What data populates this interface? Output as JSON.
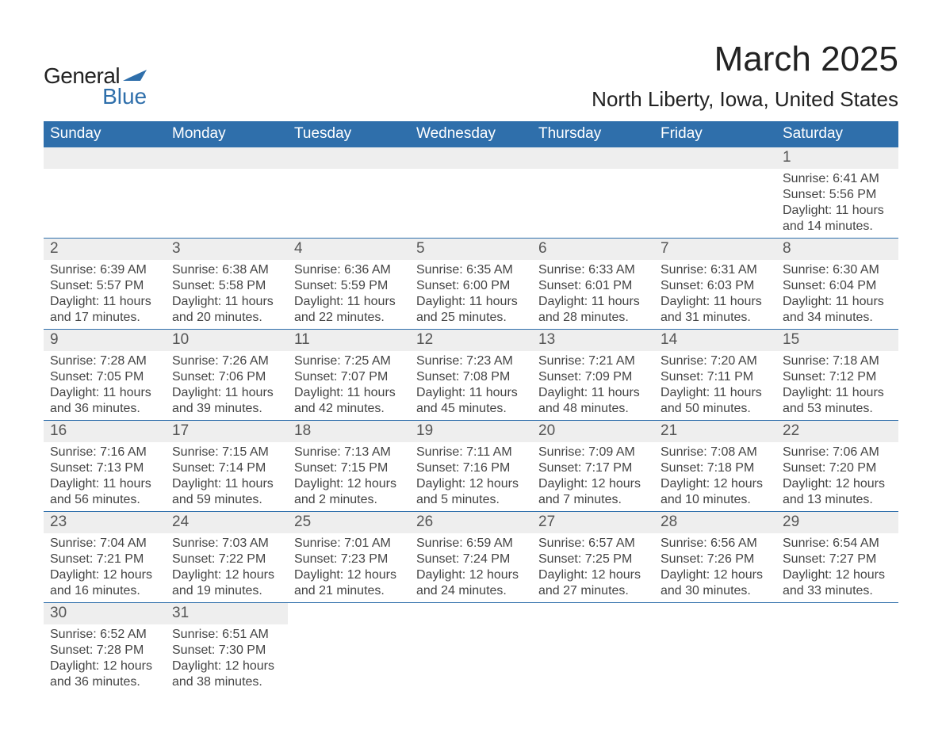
{
  "logo": {
    "text_general": "General",
    "text_blue": "Blue",
    "accent_color": "#2f6fab"
  },
  "title": "March 2025",
  "location": "North Liberty, Iowa, United States",
  "colors": {
    "header_bg": "#2f6fab",
    "header_text": "#ffffff",
    "daynum_bg": "#eeeeee",
    "daynum_text": "#555555",
    "body_text": "#444444",
    "rule": "#2f6fab",
    "page_bg": "#ffffff"
  },
  "fonts": {
    "title_size_pt": 33,
    "location_size_pt": 20,
    "header_size_pt": 14,
    "daynum_size_pt": 14,
    "detail_size_pt": 12,
    "family": "Arial"
  },
  "columns": [
    "Sunday",
    "Monday",
    "Tuesday",
    "Wednesday",
    "Thursday",
    "Friday",
    "Saturday"
  ],
  "weeks": [
    [
      {
        "empty": true
      },
      {
        "empty": true
      },
      {
        "empty": true
      },
      {
        "empty": true
      },
      {
        "empty": true
      },
      {
        "empty": true
      },
      {
        "day": "1",
        "sunrise": "Sunrise: 6:41 AM",
        "sunset": "Sunset: 5:56 PM",
        "daylight1": "Daylight: 11 hours",
        "daylight2": "and 14 minutes."
      }
    ],
    [
      {
        "day": "2",
        "sunrise": "Sunrise: 6:39 AM",
        "sunset": "Sunset: 5:57 PM",
        "daylight1": "Daylight: 11 hours",
        "daylight2": "and 17 minutes."
      },
      {
        "day": "3",
        "sunrise": "Sunrise: 6:38 AM",
        "sunset": "Sunset: 5:58 PM",
        "daylight1": "Daylight: 11 hours",
        "daylight2": "and 20 minutes."
      },
      {
        "day": "4",
        "sunrise": "Sunrise: 6:36 AM",
        "sunset": "Sunset: 5:59 PM",
        "daylight1": "Daylight: 11 hours",
        "daylight2": "and 22 minutes."
      },
      {
        "day": "5",
        "sunrise": "Sunrise: 6:35 AM",
        "sunset": "Sunset: 6:00 PM",
        "daylight1": "Daylight: 11 hours",
        "daylight2": "and 25 minutes."
      },
      {
        "day": "6",
        "sunrise": "Sunrise: 6:33 AM",
        "sunset": "Sunset: 6:01 PM",
        "daylight1": "Daylight: 11 hours",
        "daylight2": "and 28 minutes."
      },
      {
        "day": "7",
        "sunrise": "Sunrise: 6:31 AM",
        "sunset": "Sunset: 6:03 PM",
        "daylight1": "Daylight: 11 hours",
        "daylight2": "and 31 minutes."
      },
      {
        "day": "8",
        "sunrise": "Sunrise: 6:30 AM",
        "sunset": "Sunset: 6:04 PM",
        "daylight1": "Daylight: 11 hours",
        "daylight2": "and 34 minutes."
      }
    ],
    [
      {
        "day": "9",
        "sunrise": "Sunrise: 7:28 AM",
        "sunset": "Sunset: 7:05 PM",
        "daylight1": "Daylight: 11 hours",
        "daylight2": "and 36 minutes."
      },
      {
        "day": "10",
        "sunrise": "Sunrise: 7:26 AM",
        "sunset": "Sunset: 7:06 PM",
        "daylight1": "Daylight: 11 hours",
        "daylight2": "and 39 minutes."
      },
      {
        "day": "11",
        "sunrise": "Sunrise: 7:25 AM",
        "sunset": "Sunset: 7:07 PM",
        "daylight1": "Daylight: 11 hours",
        "daylight2": "and 42 minutes."
      },
      {
        "day": "12",
        "sunrise": "Sunrise: 7:23 AM",
        "sunset": "Sunset: 7:08 PM",
        "daylight1": "Daylight: 11 hours",
        "daylight2": "and 45 minutes."
      },
      {
        "day": "13",
        "sunrise": "Sunrise: 7:21 AM",
        "sunset": "Sunset: 7:09 PM",
        "daylight1": "Daylight: 11 hours",
        "daylight2": "and 48 minutes."
      },
      {
        "day": "14",
        "sunrise": "Sunrise: 7:20 AM",
        "sunset": "Sunset: 7:11 PM",
        "daylight1": "Daylight: 11 hours",
        "daylight2": "and 50 minutes."
      },
      {
        "day": "15",
        "sunrise": "Sunrise: 7:18 AM",
        "sunset": "Sunset: 7:12 PM",
        "daylight1": "Daylight: 11 hours",
        "daylight2": "and 53 minutes."
      }
    ],
    [
      {
        "day": "16",
        "sunrise": "Sunrise: 7:16 AM",
        "sunset": "Sunset: 7:13 PM",
        "daylight1": "Daylight: 11 hours",
        "daylight2": "and 56 minutes."
      },
      {
        "day": "17",
        "sunrise": "Sunrise: 7:15 AM",
        "sunset": "Sunset: 7:14 PM",
        "daylight1": "Daylight: 11 hours",
        "daylight2": "and 59 minutes."
      },
      {
        "day": "18",
        "sunrise": "Sunrise: 7:13 AM",
        "sunset": "Sunset: 7:15 PM",
        "daylight1": "Daylight: 12 hours",
        "daylight2": "and 2 minutes."
      },
      {
        "day": "19",
        "sunrise": "Sunrise: 7:11 AM",
        "sunset": "Sunset: 7:16 PM",
        "daylight1": "Daylight: 12 hours",
        "daylight2": "and 5 minutes."
      },
      {
        "day": "20",
        "sunrise": "Sunrise: 7:09 AM",
        "sunset": "Sunset: 7:17 PM",
        "daylight1": "Daylight: 12 hours",
        "daylight2": "and 7 minutes."
      },
      {
        "day": "21",
        "sunrise": "Sunrise: 7:08 AM",
        "sunset": "Sunset: 7:18 PM",
        "daylight1": "Daylight: 12 hours",
        "daylight2": "and 10 minutes."
      },
      {
        "day": "22",
        "sunrise": "Sunrise: 7:06 AM",
        "sunset": "Sunset: 7:20 PM",
        "daylight1": "Daylight: 12 hours",
        "daylight2": "and 13 minutes."
      }
    ],
    [
      {
        "day": "23",
        "sunrise": "Sunrise: 7:04 AM",
        "sunset": "Sunset: 7:21 PM",
        "daylight1": "Daylight: 12 hours",
        "daylight2": "and 16 minutes."
      },
      {
        "day": "24",
        "sunrise": "Sunrise: 7:03 AM",
        "sunset": "Sunset: 7:22 PM",
        "daylight1": "Daylight: 12 hours",
        "daylight2": "and 19 minutes."
      },
      {
        "day": "25",
        "sunrise": "Sunrise: 7:01 AM",
        "sunset": "Sunset: 7:23 PM",
        "daylight1": "Daylight: 12 hours",
        "daylight2": "and 21 minutes."
      },
      {
        "day": "26",
        "sunrise": "Sunrise: 6:59 AM",
        "sunset": "Sunset: 7:24 PM",
        "daylight1": "Daylight: 12 hours",
        "daylight2": "and 24 minutes."
      },
      {
        "day": "27",
        "sunrise": "Sunrise: 6:57 AM",
        "sunset": "Sunset: 7:25 PM",
        "daylight1": "Daylight: 12 hours",
        "daylight2": "and 27 minutes."
      },
      {
        "day": "28",
        "sunrise": "Sunrise: 6:56 AM",
        "sunset": "Sunset: 7:26 PM",
        "daylight1": "Daylight: 12 hours",
        "daylight2": "and 30 minutes."
      },
      {
        "day": "29",
        "sunrise": "Sunrise: 6:54 AM",
        "sunset": "Sunset: 7:27 PM",
        "daylight1": "Daylight: 12 hours",
        "daylight2": "and 33 minutes."
      }
    ],
    [
      {
        "day": "30",
        "sunrise": "Sunrise: 6:52 AM",
        "sunset": "Sunset: 7:28 PM",
        "daylight1": "Daylight: 12 hours",
        "daylight2": "and 36 minutes."
      },
      {
        "day": "31",
        "sunrise": "Sunrise: 6:51 AM",
        "sunset": "Sunset: 7:30 PM",
        "daylight1": "Daylight: 12 hours",
        "daylight2": "and 38 minutes."
      },
      {
        "empty": true,
        "noheader": true
      },
      {
        "empty": true,
        "noheader": true
      },
      {
        "empty": true,
        "noheader": true
      },
      {
        "empty": true,
        "noheader": true
      },
      {
        "empty": true,
        "noheader": true
      }
    ]
  ]
}
